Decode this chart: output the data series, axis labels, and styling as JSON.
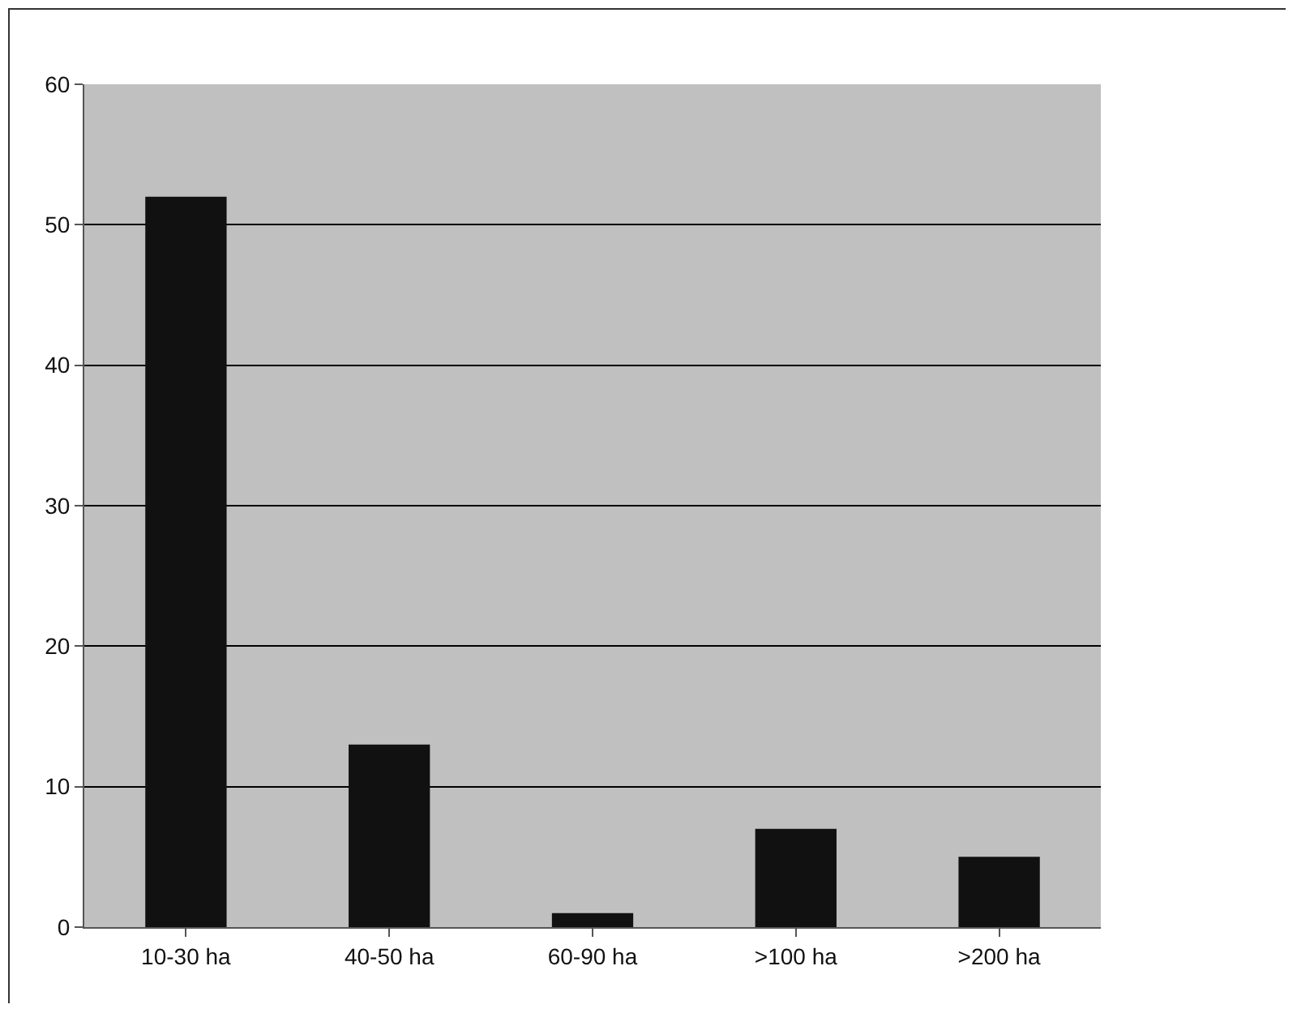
{
  "chart_data": {
    "type": "bar",
    "categories": [
      "10-30 ha",
      "40-50 ha",
      "60-90 ha",
      ">100 ha",
      ">200 ha"
    ],
    "values": [
      52,
      13,
      1,
      7,
      5
    ],
    "color": "#111111",
    "ylim": [
      0,
      60
    ],
    "yticks": [
      0,
      10,
      20,
      30,
      40,
      50,
      60
    ],
    "grid": "y"
  }
}
